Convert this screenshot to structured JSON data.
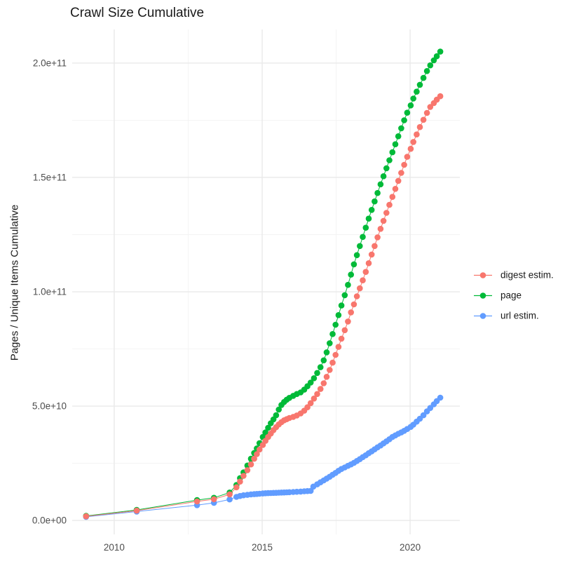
{
  "chart_data": {
    "type": "scatter-line",
    "title": "Crawl Size Cumulative",
    "xlabel": "",
    "ylabel": "Pages / Unique Items Cumulative",
    "grid": true,
    "background": "#ffffff",
    "gridline_color_major": "#e9e9e9",
    "gridline_color_minor": "#f3f3f3",
    "xlim": [
      2008.58,
      2021.68
    ],
    "ylim": [
      -6100000000.0,
      214700000000.0
    ],
    "x_ticks": [
      2010,
      2015,
      2020
    ],
    "x_tick_labels": [
      "2010",
      "2015",
      "2020"
    ],
    "x_minor_ticks": [
      2012.5,
      2017.5
    ],
    "y_ticks": [
      0,
      50000000000.0,
      100000000000.0,
      150000000000.0,
      200000000000.0
    ],
    "y_tick_labels": [
      "0.0e+00",
      "5.0e+10",
      "1.0e+11",
      "1.5e+11",
      "2.0e+11"
    ],
    "y_minor_ticks": [
      25000000000.0,
      75000000000.0,
      125000000000.0,
      175000000000.0
    ],
    "legend_position": "right",
    "series": [
      {
        "name": "digest estim.",
        "color": "#F8766D",
        "points": [
          [
            2009.05,
            1800000000.0
          ],
          [
            2010.76,
            4300000000.0
          ],
          [
            2012.8,
            8300000000.0
          ],
          [
            2013.37,
            9300000000.0
          ],
          [
            2013.9,
            11400000000.0
          ],
          [
            2014.13,
            14500000000.0
          ],
          [
            2014.25,
            17000000000.0
          ],
          [
            2014.37,
            19500000000.0
          ],
          [
            2014.5,
            22000000000.0
          ],
          [
            2014.62,
            24500000000.0
          ],
          [
            2014.73,
            27000000000.0
          ],
          [
            2014.82,
            29000000000.0
          ],
          [
            2014.91,
            31000000000.0
          ],
          [
            2015.02,
            33000000000.0
          ],
          [
            2015.11,
            34800000000.0
          ],
          [
            2015.2,
            36500000000.0
          ],
          [
            2015.29,
            38000000000.0
          ],
          [
            2015.38,
            39500000000.0
          ],
          [
            2015.47,
            40800000000.0
          ],
          [
            2015.56,
            42000000000.0
          ],
          [
            2015.65,
            43000000000.0
          ],
          [
            2015.74,
            43800000000.0
          ],
          [
            2015.83,
            44300000000.0
          ],
          [
            2015.92,
            44800000000.0
          ],
          [
            2016.05,
            45300000000.0
          ],
          [
            2016.17,
            45900000000.0
          ],
          [
            2016.3,
            46800000000.0
          ],
          [
            2016.42,
            48000000000.0
          ],
          [
            2016.53,
            49500000000.0
          ],
          [
            2016.64,
            51300000000.0
          ],
          [
            2016.75,
            53300000000.0
          ],
          [
            2016.86,
            55300000000.0
          ],
          [
            2016.97,
            57500000000.0
          ],
          [
            2017.08,
            60000000000.0
          ],
          [
            2017.18,
            62800000000.0
          ],
          [
            2017.28,
            65800000000.0
          ],
          [
            2017.38,
            69000000000.0
          ],
          [
            2017.48,
            72400000000.0
          ],
          [
            2017.58,
            75900000000.0
          ],
          [
            2017.68,
            79500000000.0
          ],
          [
            2017.79,
            83200000000.0
          ],
          [
            2017.9,
            87000000000.0
          ],
          [
            2018.0,
            91000000000.0
          ],
          [
            2018.1,
            94500000000.0
          ],
          [
            2018.2,
            98000000000.0
          ],
          [
            2018.3,
            101500000000.0
          ],
          [
            2018.4,
            105000000000.0
          ],
          [
            2018.5,
            108700000000.0
          ],
          [
            2018.6,
            112500000000.0
          ],
          [
            2018.7,
            116300000000.0
          ],
          [
            2018.8,
            120000000000.0
          ],
          [
            2018.9,
            123800000000.0
          ],
          [
            2019.0,
            127500000000.0
          ],
          [
            2019.1,
            131000000000.0
          ],
          [
            2019.2,
            134500000000.0
          ],
          [
            2019.3,
            138000000000.0
          ],
          [
            2019.4,
            141500000000.0
          ],
          [
            2019.5,
            145000000000.0
          ],
          [
            2019.6,
            148500000000.0
          ],
          [
            2019.7,
            152000000000.0
          ],
          [
            2019.8,
            155500000000.0
          ],
          [
            2019.9,
            159000000000.0
          ],
          [
            2020.02,
            162500000000.0
          ],
          [
            2020.11,
            165500000000.0
          ],
          [
            2020.22,
            168800000000.0
          ],
          [
            2020.33,
            172000000000.0
          ],
          [
            2020.45,
            175200000000.0
          ],
          [
            2020.57,
            178200000000.0
          ],
          [
            2020.68,
            180800000000.0
          ],
          [
            2020.8,
            182500000000.0
          ],
          [
            2020.9,
            184000000000.0
          ],
          [
            2021.02,
            185500000000.0
          ]
        ]
      },
      {
        "name": "page",
        "color": "#00BA38",
        "points": [
          [
            2009.05,
            2000000000.0
          ],
          [
            2010.76,
            4600000000.0
          ],
          [
            2012.8,
            8900000000.0
          ],
          [
            2013.37,
            9900000000.0
          ],
          [
            2013.9,
            12200000000.0
          ],
          [
            2014.13,
            15500000000.0
          ],
          [
            2014.25,
            18500000000.0
          ],
          [
            2014.37,
            21000000000.0
          ],
          [
            2014.5,
            24000000000.0
          ],
          [
            2014.62,
            27000000000.0
          ],
          [
            2014.73,
            29500000000.0
          ],
          [
            2014.82,
            31500000000.0
          ],
          [
            2014.91,
            33800000000.0
          ],
          [
            2015.02,
            36500000000.0
          ],
          [
            2015.11,
            38500000000.0
          ],
          [
            2015.2,
            40500000000.0
          ],
          [
            2015.29,
            42500000000.0
          ],
          [
            2015.38,
            44200000000.0
          ],
          [
            2015.47,
            46000000000.0
          ],
          [
            2015.56,
            48500000000.0
          ],
          [
            2015.65,
            50500000000.0
          ],
          [
            2015.74,
            51800000000.0
          ],
          [
            2015.83,
            52800000000.0
          ],
          [
            2015.92,
            53600000000.0
          ],
          [
            2016.05,
            54500000000.0
          ],
          [
            2016.17,
            55300000000.0
          ],
          [
            2016.3,
            56000000000.0
          ],
          [
            2016.42,
            57200000000.0
          ],
          [
            2016.53,
            58700000000.0
          ],
          [
            2016.64,
            60300000000.0
          ],
          [
            2016.75,
            62200000000.0
          ],
          [
            2016.86,
            64500000000.0
          ],
          [
            2016.97,
            67000000000.0
          ],
          [
            2017.08,
            70000000000.0
          ],
          [
            2017.18,
            73500000000.0
          ],
          [
            2017.28,
            77500000000.0
          ],
          [
            2017.38,
            81500000000.0
          ],
          [
            2017.48,
            85600000000.0
          ],
          [
            2017.58,
            89800000000.0
          ],
          [
            2017.68,
            94000000000.0
          ],
          [
            2017.79,
            98500000000.0
          ],
          [
            2017.9,
            103000000000.0
          ],
          [
            2018.0,
            107500000000.0
          ],
          [
            2018.1,
            112000000000.0
          ],
          [
            2018.2,
            116000000000.0
          ],
          [
            2018.3,
            120000000000.0
          ],
          [
            2018.4,
            124000000000.0
          ],
          [
            2018.5,
            128000000000.0
          ],
          [
            2018.6,
            132000000000.0
          ],
          [
            2018.7,
            135800000000.0
          ],
          [
            2018.8,
            139500000000.0
          ],
          [
            2018.9,
            143200000000.0
          ],
          [
            2019.0,
            147000000000.0
          ],
          [
            2019.1,
            150500000000.0
          ],
          [
            2019.2,
            154000000000.0
          ],
          [
            2019.3,
            157500000000.0
          ],
          [
            2019.4,
            161000000000.0
          ],
          [
            2019.5,
            164500000000.0
          ],
          [
            2019.6,
            168000000000.0
          ],
          [
            2019.7,
            171500000000.0
          ],
          [
            2019.8,
            175000000000.0
          ],
          [
            2019.9,
            178300000000.0
          ],
          [
            2020.02,
            181500000000.0
          ],
          [
            2020.11,
            184500000000.0
          ],
          [
            2020.22,
            187500000000.0
          ],
          [
            2020.33,
            190500000000.0
          ],
          [
            2020.45,
            193500000000.0
          ],
          [
            2020.57,
            196500000000.0
          ],
          [
            2020.68,
            199000000000.0
          ],
          [
            2020.8,
            201200000000.0
          ],
          [
            2020.9,
            203000000000.0
          ],
          [
            2021.02,
            205000000000.0
          ]
        ]
      },
      {
        "name": "url estim.",
        "color": "#619CFF",
        "points": [
          [
            2009.05,
            1600000000.0
          ],
          [
            2010.76,
            3900000000.0
          ],
          [
            2012.8,
            6700000000.0
          ],
          [
            2013.37,
            7700000000.0
          ],
          [
            2013.9,
            9200000000.0
          ],
          [
            2014.13,
            10300000000.0
          ],
          [
            2014.25,
            10700000000.0
          ],
          [
            2014.37,
            11000000000.0
          ],
          [
            2014.5,
            11200000000.0
          ],
          [
            2014.62,
            11400000000.0
          ],
          [
            2014.73,
            11500000000.0
          ],
          [
            2014.82,
            11600000000.0
          ],
          [
            2014.91,
            11700000000.0
          ],
          [
            2015.02,
            11800000000.0
          ],
          [
            2015.11,
            11900000000.0
          ],
          [
            2015.2,
            11950000000.0
          ],
          [
            2015.29,
            12000000000.0
          ],
          [
            2015.38,
            12050000000.0
          ],
          [
            2015.47,
            12100000000.0
          ],
          [
            2015.56,
            12150000000.0
          ],
          [
            2015.65,
            12200000000.0
          ],
          [
            2015.74,
            12250000000.0
          ],
          [
            2015.83,
            12300000000.0
          ],
          [
            2015.92,
            12350000000.0
          ],
          [
            2016.05,
            12450000000.0
          ],
          [
            2016.17,
            12550000000.0
          ],
          [
            2016.3,
            12650000000.0
          ],
          [
            2016.42,
            12750000000.0
          ],
          [
            2016.53,
            12850000000.0
          ],
          [
            2016.64,
            12950000000.0
          ],
          [
            2016.73,
            14800000000.0
          ],
          [
            2016.86,
            15800000000.0
          ],
          [
            2016.97,
            16700000000.0
          ],
          [
            2017.08,
            17500000000.0
          ],
          [
            2017.18,
            18300000000.0
          ],
          [
            2017.28,
            19100000000.0
          ],
          [
            2017.38,
            20000000000.0
          ],
          [
            2017.48,
            20800000000.0
          ],
          [
            2017.58,
            21700000000.0
          ],
          [
            2017.68,
            22500000000.0
          ],
          [
            2017.79,
            23200000000.0
          ],
          [
            2017.9,
            23900000000.0
          ],
          [
            2018.0,
            24500000000.0
          ],
          [
            2018.1,
            25200000000.0
          ],
          [
            2018.2,
            26000000000.0
          ],
          [
            2018.3,
            26800000000.0
          ],
          [
            2018.4,
            27700000000.0
          ],
          [
            2018.5,
            28500000000.0
          ],
          [
            2018.6,
            29400000000.0
          ],
          [
            2018.7,
            30200000000.0
          ],
          [
            2018.8,
            31100000000.0
          ],
          [
            2018.9,
            32000000000.0
          ],
          [
            2019.0,
            32800000000.0
          ],
          [
            2019.1,
            33700000000.0
          ],
          [
            2019.2,
            34600000000.0
          ],
          [
            2019.3,
            35500000000.0
          ],
          [
            2019.4,
            36500000000.0
          ],
          [
            2019.5,
            37200000000.0
          ],
          [
            2019.6,
            37900000000.0
          ],
          [
            2019.7,
            38500000000.0
          ],
          [
            2019.8,
            39200000000.0
          ],
          [
            2019.9,
            40000000000.0
          ],
          [
            2020.02,
            40900000000.0
          ],
          [
            2020.11,
            41900000000.0
          ],
          [
            2020.22,
            43200000000.0
          ],
          [
            2020.33,
            44500000000.0
          ],
          [
            2020.45,
            46000000000.0
          ],
          [
            2020.57,
            47700000000.0
          ],
          [
            2020.68,
            49200000000.0
          ],
          [
            2020.8,
            50800000000.0
          ],
          [
            2020.9,
            52200000000.0
          ],
          [
            2021.02,
            53700000000.0
          ]
        ]
      }
    ]
  }
}
